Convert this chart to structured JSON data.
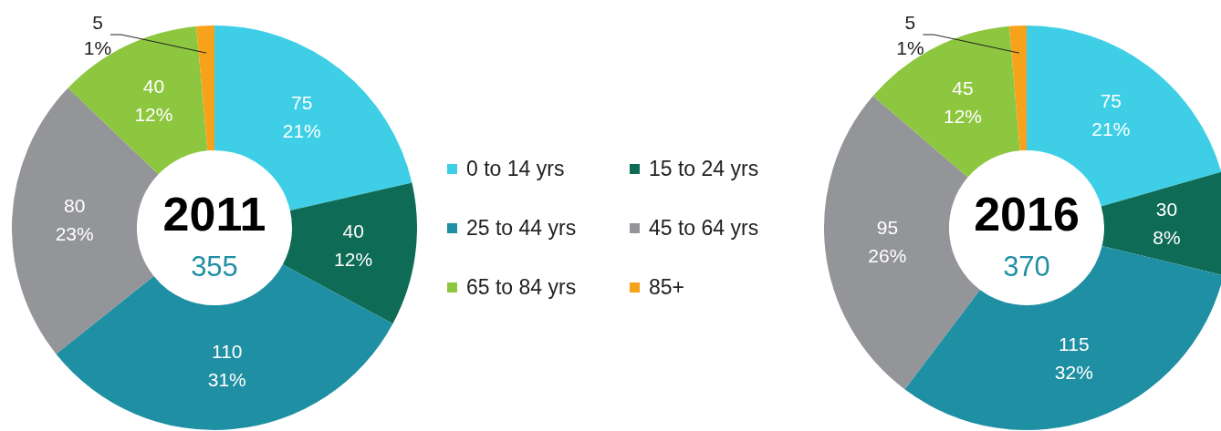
{
  "chart_data": [
    {
      "type": "donut",
      "title": "2011",
      "subtitle": "355",
      "categories": [
        "0 to 14 yrs",
        "15 to 24 yrs",
        "25 to 44 yrs",
        "45 to 64 yrs",
        "65 to 84 yrs",
        "85+"
      ],
      "values": [
        75,
        40,
        110,
        80,
        40,
        5
      ],
      "colors": [
        "#3ecfe6",
        "#0e6b55",
        "#1f8fa3",
        "#939598",
        "#8dc63f",
        "#f7a21b"
      ],
      "value_labels": [
        "75\n21%",
        "40\n12%",
        "110\n31%",
        "80\n23%",
        "40\n12%",
        "5\n1%"
      ],
      "legend": "right"
    },
    {
      "type": "donut",
      "title": "2016",
      "subtitle": "370",
      "categories": [
        null,
        null,
        null,
        null,
        null,
        null
      ],
      "values": [
        75,
        30,
        115,
        95,
        45,
        5
      ],
      "colors": [
        "#3ecfe6",
        "#0e6b55",
        "#1f8fa3",
        "#939598",
        "#8dc63f",
        "#f7a21b"
      ],
      "value_labels": [
        "75\n21%",
        "30\n8%",
        "115\n32%",
        "95\n26%",
        "45\n12%",
        "5\n1%"
      ]
    }
  ]
}
